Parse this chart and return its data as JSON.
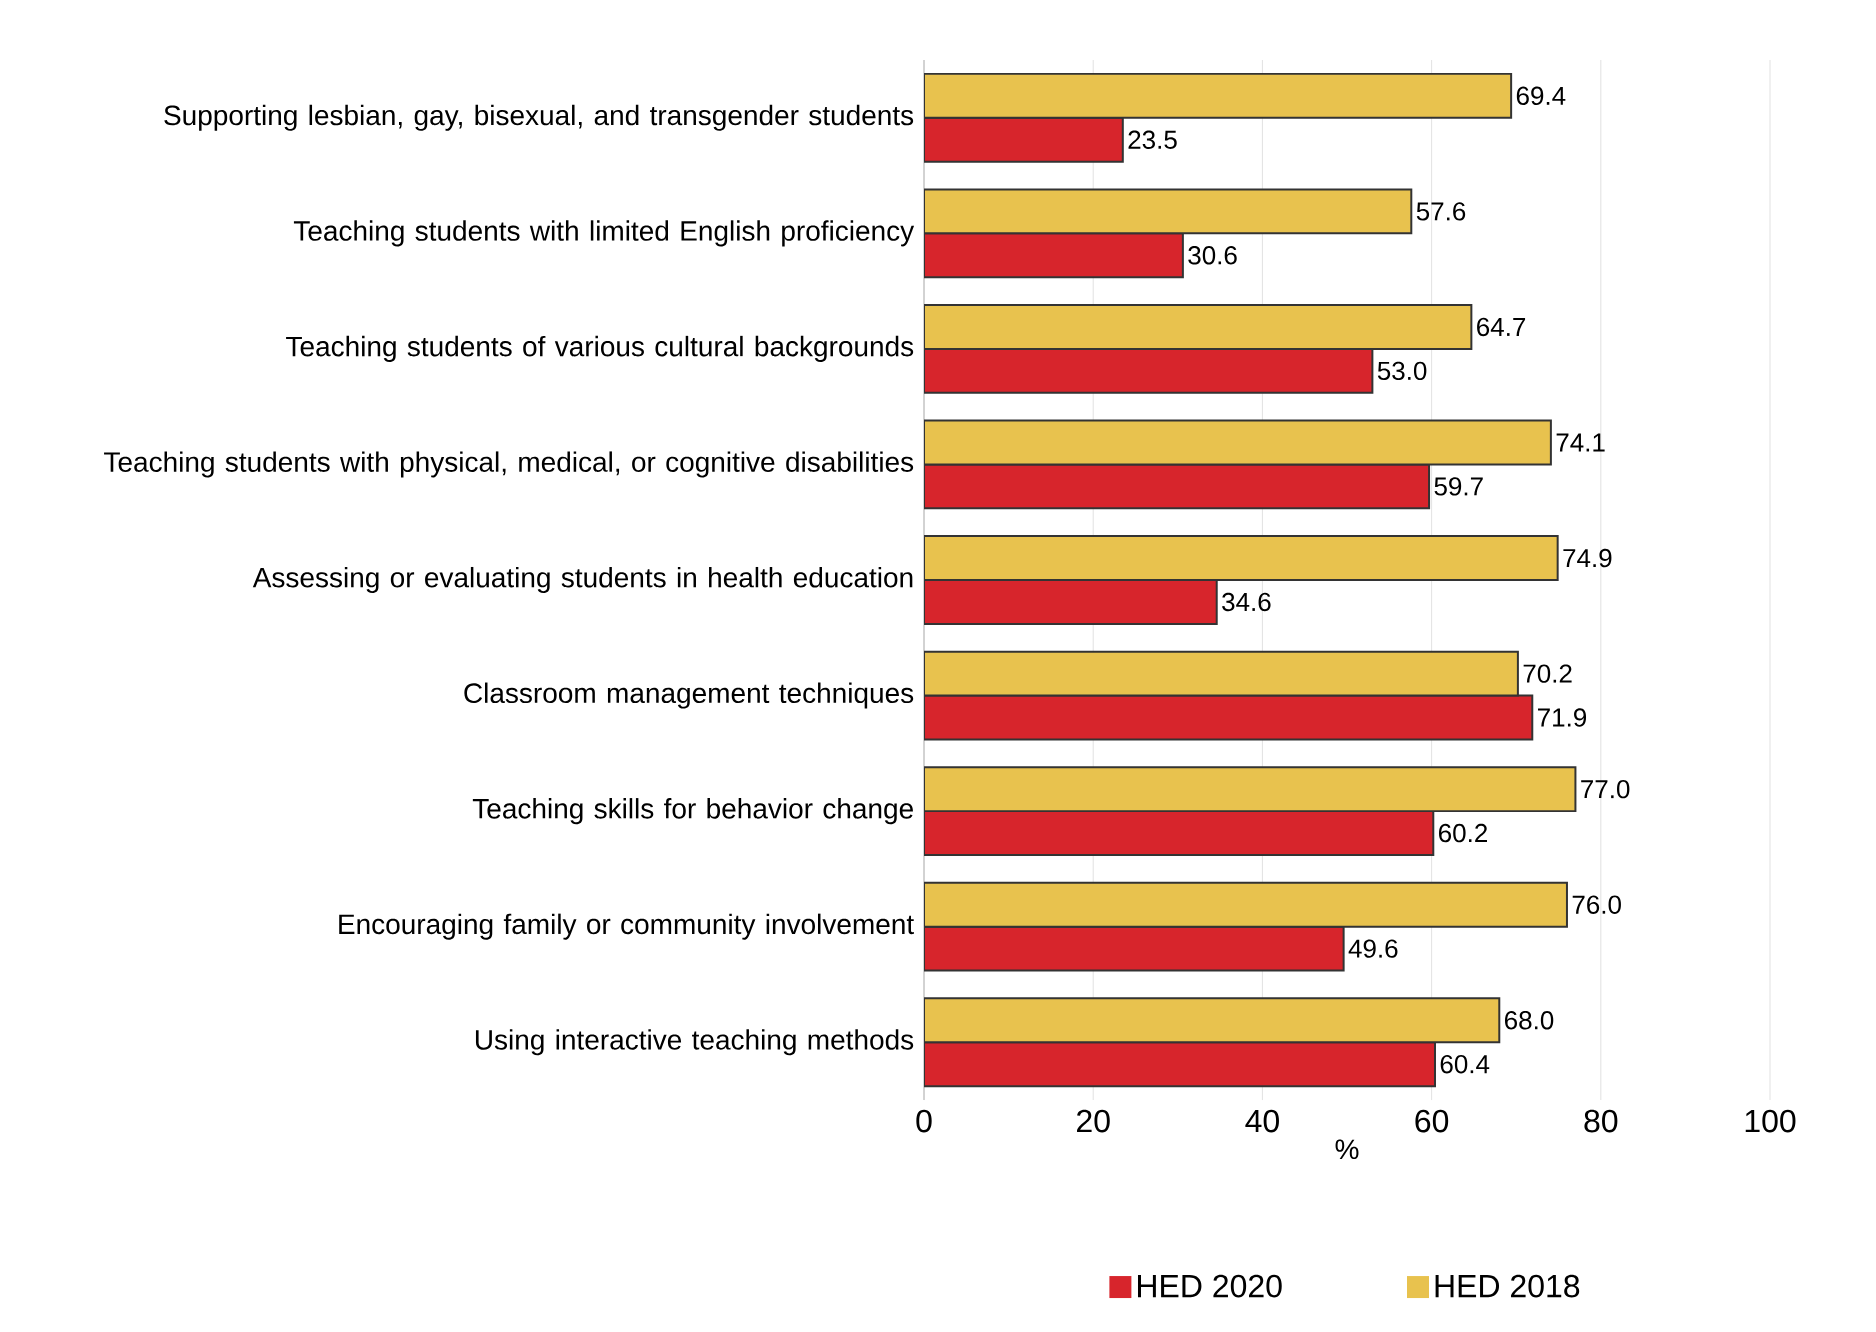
{
  "chart_data": {
    "type": "bar",
    "orientation": "horizontal",
    "categories": [
      "Supporting lesbian, gay, bisexual, and transgender students",
      "Teaching students with limited English proficiency",
      "Teaching students of various cultural backgrounds",
      "Teaching students with physical, medical, or cognitive disabilities",
      "Assessing or evaluating students in health education",
      "Classroom management techniques",
      "Teaching skills for behavior change",
      "Encouraging family or community involvement",
      "Using interactive teaching methods"
    ],
    "series": [
      {
        "name": "HED 2020",
        "color": "#d7252c",
        "values": [
          23.5,
          30.6,
          53.0,
          59.7,
          34.6,
          71.9,
          60.2,
          49.6,
          60.4
        ],
        "value_labels": [
          "23.5",
          "30.6",
          "53.0",
          "59.7",
          "34.6",
          "71.9",
          "60.2",
          "49.6",
          "60.4"
        ]
      },
      {
        "name": "HED 2018",
        "color": "#e8c24e",
        "values": [
          69.4,
          57.6,
          64.7,
          74.1,
          74.9,
          70.2,
          77.0,
          76.0,
          68.0
        ],
        "value_labels": [
          "69.4",
          "57.6",
          "64.7",
          "74.1",
          "74.9",
          "70.2",
          "77.0",
          "76.0",
          "68.0"
        ]
      }
    ],
    "xlabel": "%",
    "xlim": [
      0,
      100
    ],
    "xticks": [
      0,
      20,
      40,
      60,
      80,
      100
    ],
    "grid": "x",
    "legend": "bottom"
  }
}
